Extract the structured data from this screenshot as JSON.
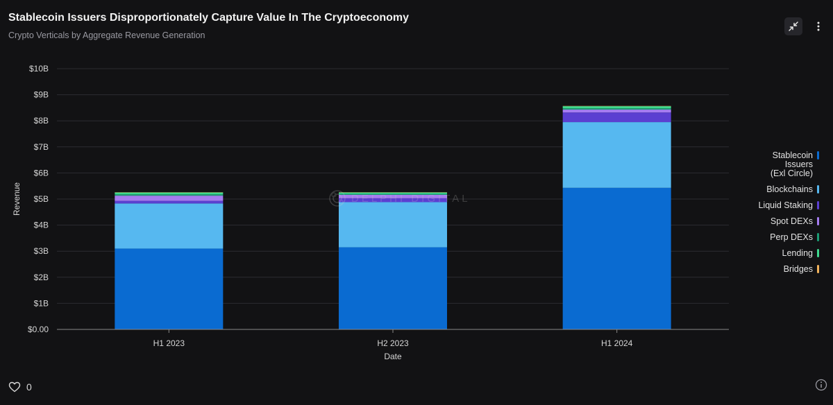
{
  "header": {
    "title": "Stablecoin Issuers Disproportionately Capture Value In The Cryptoeconomy",
    "subtitle": "Crypto Verticals by Aggregate Revenue Generation"
  },
  "toolbar": {
    "collapse_icon": "collapse-icon",
    "more_icon": "more-vertical-icon"
  },
  "watermark": {
    "text": "DELPHI DIGITAL",
    "icon": "delphi-logo-icon"
  },
  "footer": {
    "like_count": "0",
    "like_icon": "heart-icon",
    "info_icon": "info-icon"
  },
  "chart_data": {
    "type": "bar",
    "stacked": true,
    "xlabel": "Date",
    "ylabel": "Revenue",
    "categories": [
      "H1 2023",
      "H2 2023",
      "H1 2024"
    ],
    "ylim": [
      0,
      10000000000
    ],
    "yticks": [
      {
        "value": 0,
        "label": "$0.00"
      },
      {
        "value": 1000000000,
        "label": "$1B"
      },
      {
        "value": 2000000000,
        "label": "$2B"
      },
      {
        "value": 3000000000,
        "label": "$3B"
      },
      {
        "value": 4000000000,
        "label": "$4B"
      },
      {
        "value": 5000000000,
        "label": "$5B"
      },
      {
        "value": 6000000000,
        "label": "$6B"
      },
      {
        "value": 7000000000,
        "label": "$7B"
      },
      {
        "value": 8000000000,
        "label": "$8B"
      },
      {
        "value": 9000000000,
        "label": "$9B"
      },
      {
        "value": 10000000000,
        "label": "$10B"
      }
    ],
    "grid": true,
    "legend_position": "right",
    "series": [
      {
        "name": "Stablecoin Issuers (Exl Circle)",
        "color": "#0a6bd1",
        "values": [
          3100000000,
          3150000000,
          5430000000
        ]
      },
      {
        "name": "Blockchains",
        "color": "#56b8f0",
        "values": [
          1730000000,
          1730000000,
          2520000000
        ]
      },
      {
        "name": "Liquid Staking",
        "color": "#5b3fd1",
        "values": [
          100000000,
          150000000,
          370000000
        ]
      },
      {
        "name": "Spot DEXs",
        "color": "#a57cf0",
        "values": [
          200000000,
          130000000,
          110000000
        ]
      },
      {
        "name": "Perp DEXs",
        "color": "#1c9c74",
        "values": [
          50000000,
          40000000,
          50000000
        ]
      },
      {
        "name": "Lending",
        "color": "#3dd98e",
        "values": [
          70000000,
          50000000,
          80000000
        ]
      },
      {
        "name": "Bridges",
        "color": "#f2b35c",
        "values": [
          10000000,
          10000000,
          10000000
        ]
      }
    ]
  }
}
